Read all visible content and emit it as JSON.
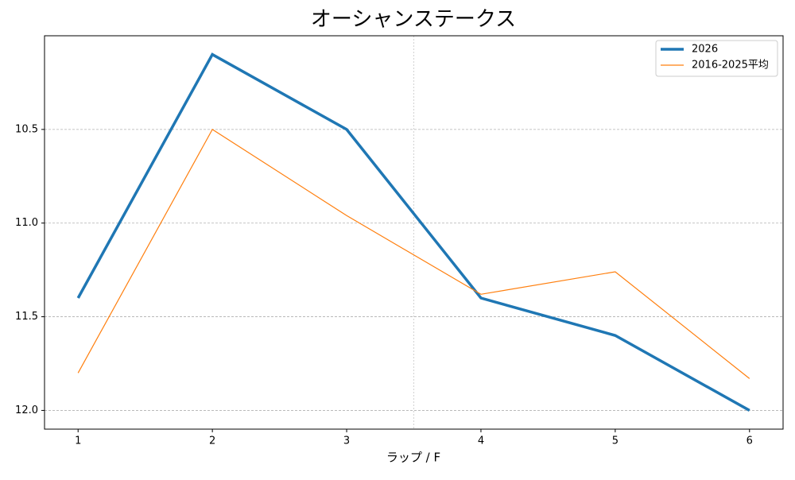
{
  "chart_data": {
    "type": "line",
    "title": "オーシャンステークス",
    "xlabel": "ラップ / F",
    "x": [
      1,
      2,
      3,
      4,
      5,
      6
    ],
    "series": [
      {
        "name": "2026",
        "color": "#1f77b4",
        "width": 3.5,
        "values": [
          11.4,
          10.1,
          10.5,
          11.4,
          11.6,
          12.0
        ]
      },
      {
        "name": "2016-2025平均",
        "color": "#ff7f0e",
        "width": 1.2,
        "values": [
          11.8,
          10.5,
          10.96,
          11.38,
          11.26,
          11.83
        ]
      }
    ],
    "xlim": [
      0.75,
      6.25
    ],
    "xticks": [
      1,
      2,
      3,
      4,
      5,
      6
    ],
    "ylim": [
      12.1,
      10.0
    ],
    "yticks": [
      10.5,
      {
        "value": 11.0,
        "label": "11.0"
      },
      11.5,
      {
        "value": 12.0,
        "label": "12.0"
      }
    ],
    "vline": 3.5,
    "grid": true,
    "legend": "upper-right"
  }
}
